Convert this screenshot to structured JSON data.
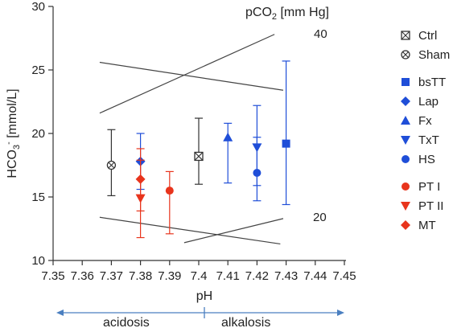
{
  "chart_data": {
    "type": "scatter",
    "title": "",
    "xlabel": "pH",
    "ylabel": "HCO",
    "ylabel_sub": "3",
    "ylabel_sup": "-",
    "ylabel_unit": " [mmol/L]",
    "xlim": [
      7.35,
      7.45
    ],
    "ylim": [
      10,
      30
    ],
    "x_ticks": [
      "7.35",
      "7.36",
      "7.37",
      "7.38",
      "7.39",
      "7.4",
      "7.41",
      "7.42",
      "7.43",
      "7.44",
      "7.45"
    ],
    "y_ticks": [
      "10",
      "15",
      "20",
      "25",
      "30"
    ],
    "grid": false,
    "legend_position": "right",
    "isobar_title": "pCO",
    "isobar_title_sub": "2",
    "isobar_title_unit": " [mm Hg]",
    "isobar_labels": [
      "40",
      "20"
    ],
    "reference_lines": [
      {
        "x1": 7.366,
        "y1": 21.6,
        "x2": 7.426,
        "y2": 27.8
      },
      {
        "x1": 7.366,
        "y1": 25.6,
        "x2": 7.429,
        "y2": 23.4
      },
      {
        "x1": 7.366,
        "y1": 13.4,
        "x2": 7.428,
        "y2": 11.3
      },
      {
        "x1": 7.395,
        "y1": 11.4,
        "x2": 7.429,
        "y2": 13.3
      }
    ],
    "series": [
      {
        "name": "Ctrl",
        "marker": "boxx",
        "color": "#333333",
        "x": 7.4,
        "y": 18.2,
        "lo": 16.0,
        "hi": 21.2
      },
      {
        "name": "Sham",
        "marker": "circlex",
        "color": "#333333",
        "x": 7.37,
        "y": 17.5,
        "lo": 15.1,
        "hi": 20.3
      },
      {
        "name": "bsTT",
        "marker": "square",
        "color": "#1f4ed8",
        "x": 7.43,
        "y": 19.2,
        "lo": 14.4,
        "hi": 25.7
      },
      {
        "name": "Lap",
        "marker": "diamond",
        "color": "#1f4ed8",
        "x": 7.38,
        "y": 17.8,
        "lo": 15.6,
        "hi": 20.0
      },
      {
        "name": "Fx",
        "marker": "triup",
        "color": "#1f4ed8",
        "x": 7.41,
        "y": 19.7,
        "lo": 16.1,
        "hi": 20.8
      },
      {
        "name": "TxT",
        "marker": "tridown",
        "color": "#1f4ed8",
        "x": 7.42,
        "y": 18.9,
        "lo": 14.7,
        "hi": 19.7
      },
      {
        "name": "HS",
        "marker": "circle",
        "color": "#1f4ed8",
        "x": 7.42,
        "y": 16.9,
        "lo": 15.9,
        "hi": 22.2
      },
      {
        "name": "PT I",
        "marker": "circle",
        "color": "#e8341c",
        "x": 7.39,
        "y": 15.5,
        "lo": 12.1,
        "hi": 17.0
      },
      {
        "name": "PT II",
        "marker": "tridown",
        "color": "#e8341c",
        "x": 7.38,
        "y": 14.9,
        "lo": 11.8,
        "hi": 18.8
      },
      {
        "name": "MT",
        "marker": "diamond",
        "color": "#e8341c",
        "x": 7.38,
        "y": 16.4,
        "lo": 13.9,
        "hi": 17.9
      }
    ],
    "legend_groups": [
      [
        "Ctrl",
        "Sham"
      ],
      [
        "bsTT",
        "Lap",
        "Fx",
        "TxT",
        "HS"
      ],
      [
        "PT I",
        "PT II",
        "MT"
      ]
    ],
    "ph_scale": {
      "left_label": "acidosis",
      "right_label": "alkalosis",
      "arrow_color": "#4a7fc0"
    }
  }
}
